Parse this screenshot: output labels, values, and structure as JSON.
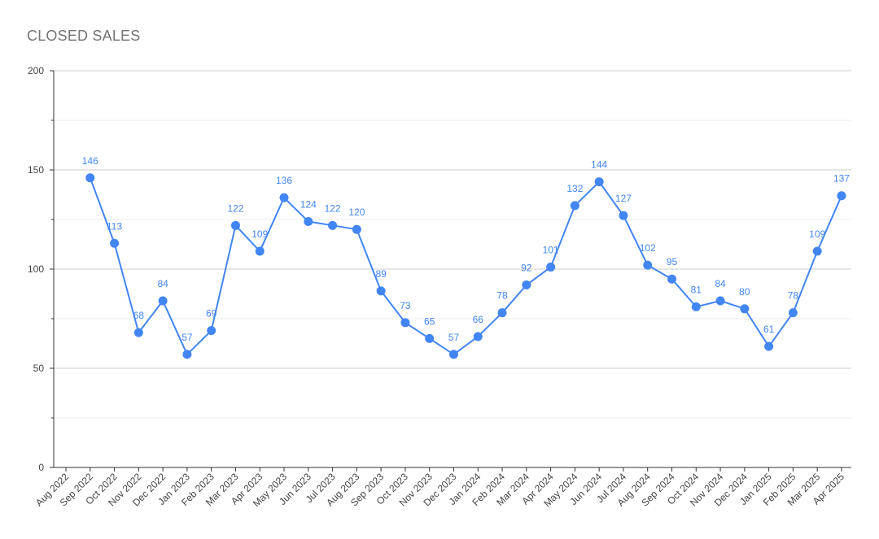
{
  "chart_data": {
    "type": "line",
    "title": "CLOSED SALES",
    "xlabel": "",
    "ylabel": "",
    "ylim": [
      0,
      200
    ],
    "yticks": [
      0,
      50,
      100,
      150,
      200
    ],
    "grid": true,
    "legend": "none",
    "categories": [
      "Aug 2022",
      "Sep 2022",
      "Oct 2022",
      "Nov 2022",
      "Dec 2022",
      "Jan 2023",
      "Feb 2023",
      "Mar 2023",
      "Apr 2023",
      "May 2023",
      "Jun 2023",
      "Jul 2023",
      "Aug 2023",
      "Sep 2023",
      "Oct 2023",
      "Nov 2023",
      "Dec 2023",
      "Jan 2024",
      "Feb 2024",
      "Mar 2024",
      "Apr 2024",
      "May 2024",
      "Jun 2024",
      "Jul 2024",
      "Aug 2024",
      "Sep 2024",
      "Oct 2024",
      "Nov 2024",
      "Dec 2024",
      "Jan 2025",
      "Feb 2025",
      "Mar 2025",
      "Apr 2025"
    ],
    "series": [
      {
        "values": [
          null,
          146,
          113,
          68,
          84,
          57,
          69,
          122,
          109,
          136,
          124,
          122,
          120,
          89,
          73,
          65,
          57,
          66,
          78,
          92,
          101,
          132,
          144,
          127,
          102,
          95,
          81,
          84,
          80,
          61,
          78,
          109,
          137
        ],
        "color": "#4285f4"
      }
    ]
  }
}
